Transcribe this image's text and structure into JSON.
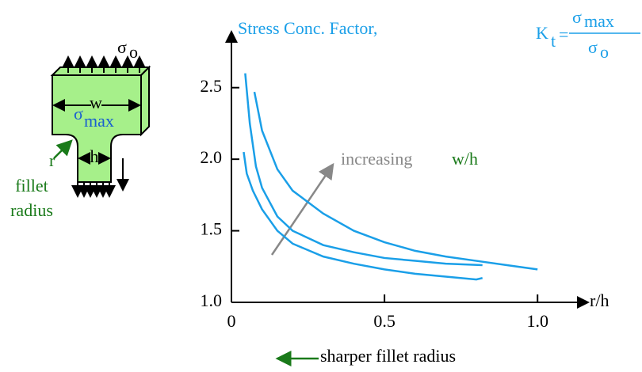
{
  "chart_data": {
    "type": "line",
    "y_label": "Stress Conc. Factor,",
    "formula": {
      "symbol": "K",
      "subscript": "t",
      "equals": "=",
      "numerator": "σ",
      "numerator_sub": "max",
      "denominator": "σ",
      "denominator_sub": "o"
    },
    "x_label": "r/h",
    "xlim": [
      0,
      1.16
    ],
    "ylim": [
      1.0,
      2.88
    ],
    "xticks": [
      0,
      0.5,
      {
        "value": 1,
        "label": "1.0"
      }
    ],
    "yticks": [
      {
        "value": 1,
        "label": "1.0"
      },
      1.5,
      {
        "value": 2,
        "label": "2.0"
      },
      2.5
    ],
    "series": [
      {
        "color": "#1a9fe8",
        "x": [
          0.04,
          0.05,
          0.07,
          0.1,
          0.15,
          0.2,
          0.3,
          0.4,
          0.5,
          0.6,
          0.7,
          0.8,
          0.82
        ],
        "values": [
          2.05,
          1.9,
          1.78,
          1.65,
          1.5,
          1.41,
          1.32,
          1.27,
          1.23,
          1.2,
          1.18,
          1.16,
          1.17
        ]
      },
      {
        "color": "#1a9fe8",
        "x": [
          0.045,
          0.06,
          0.08,
          0.1,
          0.15,
          0.2,
          0.3,
          0.4,
          0.5,
          0.6,
          0.7,
          0.82
        ],
        "values": [
          2.6,
          2.25,
          1.95,
          1.8,
          1.6,
          1.5,
          1.4,
          1.35,
          1.31,
          1.29,
          1.27,
          1.26
        ]
      },
      {
        "color": "#1a9fe8",
        "x": [
          0.075,
          0.1,
          0.15,
          0.2,
          0.3,
          0.4,
          0.5,
          0.6,
          0.7,
          0.8,
          0.9,
          1.0
        ],
        "values": [
          2.47,
          2.2,
          1.93,
          1.78,
          1.62,
          1.5,
          1.42,
          1.36,
          1.32,
          1.29,
          1.26,
          1.23
        ]
      }
    ],
    "annotations": {
      "increasing": "increasing",
      "ratio": "w/h",
      "sharper": "sharper fillet radius"
    }
  },
  "diagram": {
    "sigma_o": {
      "symbol": "σ",
      "sub": "o"
    },
    "sigma_max": {
      "symbol": "σ",
      "sub": "max"
    },
    "w": "w",
    "h": "h",
    "r": "r",
    "fillet": "fillet",
    "radius": "radius"
  }
}
